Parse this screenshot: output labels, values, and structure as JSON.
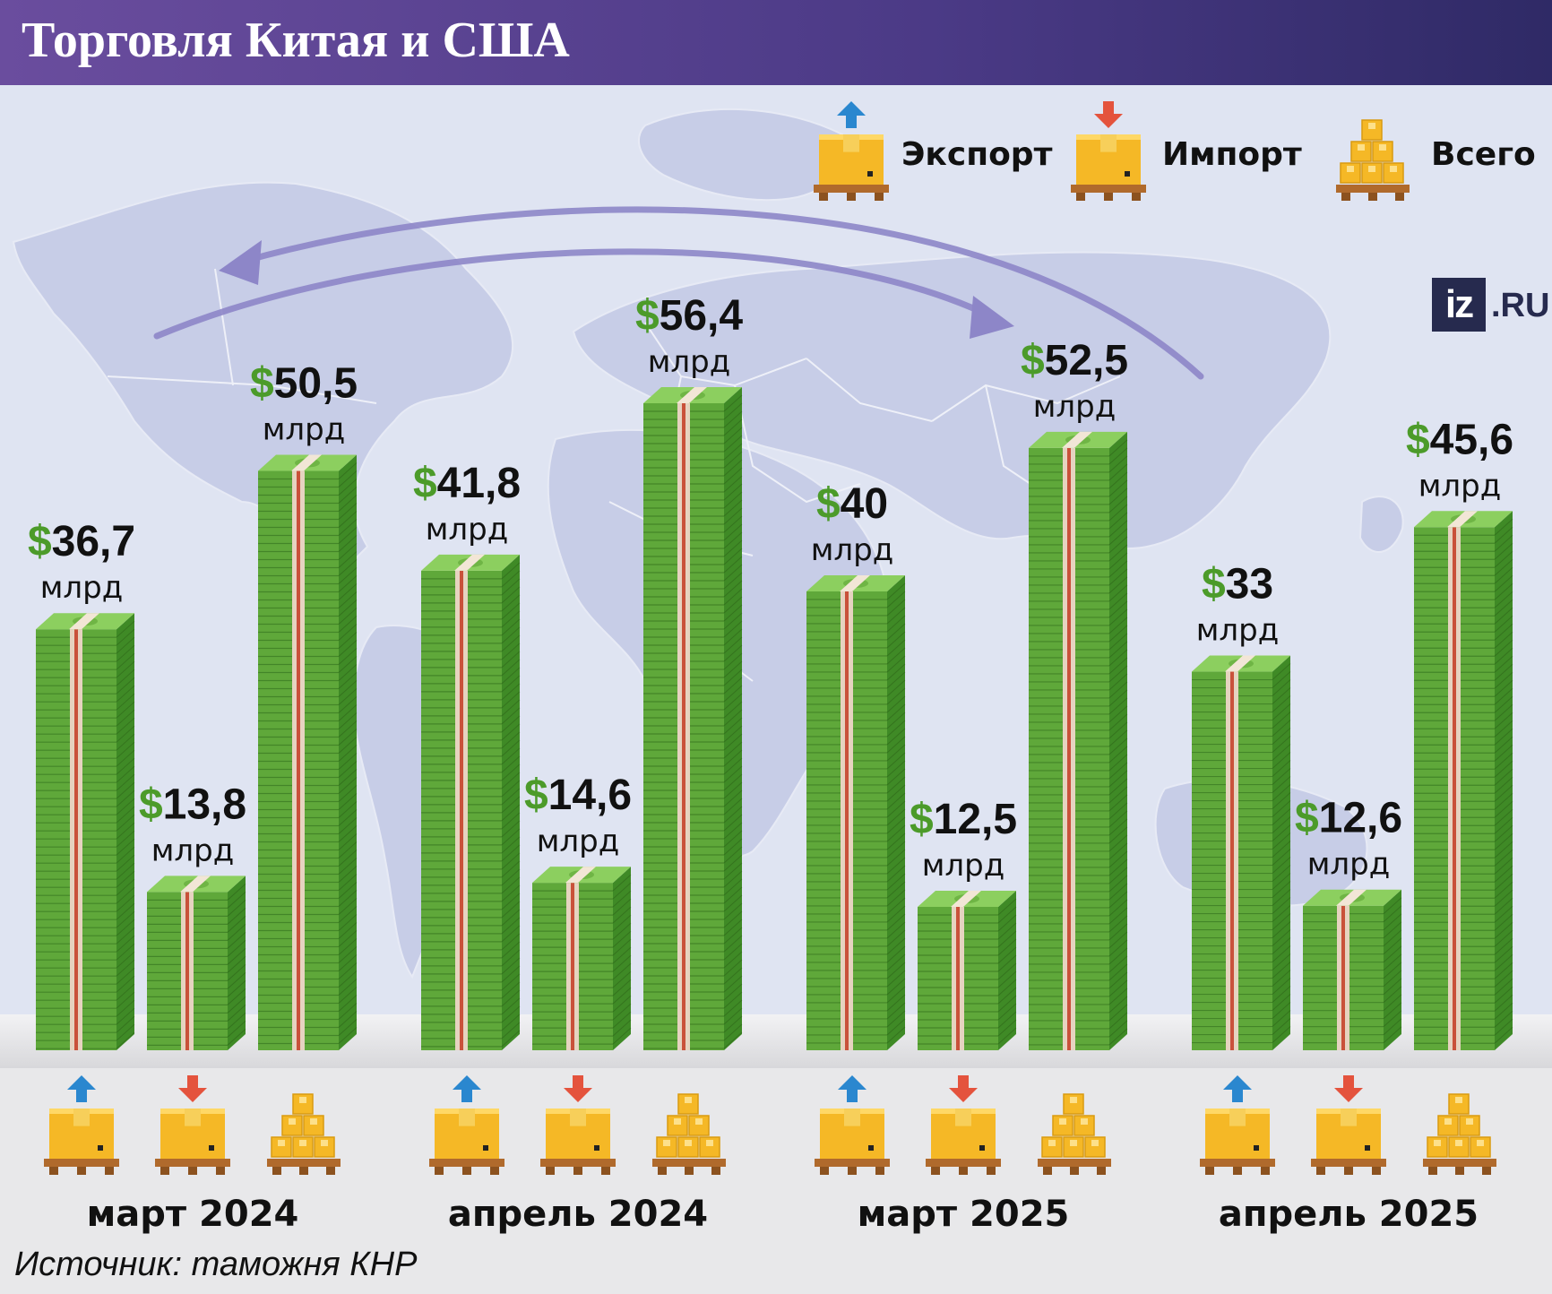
{
  "title": "Торговля Китая и США",
  "source": "Источник: таможня КНР",
  "logo": {
    "mark": "iz",
    "domain": ".RU"
  },
  "legend": [
    {
      "label": "Экспорт",
      "icon": "export-box-icon"
    },
    {
      "label": "Импорт",
      "icon": "import-box-icon"
    },
    {
      "label": "Всего",
      "icon": "total-boxes-icon"
    }
  ],
  "colors": {
    "header_start": "#6a4d9e",
    "header_end": "#2f2a66",
    "money_green": "#5fa83a",
    "money_dark": "#2d6a1a",
    "dollar_green": "#4c9b2a",
    "export_arrow": "#2a87cf",
    "import_arrow": "#e4533d",
    "box_yellow": "#f5b826",
    "map": "#c3cae6",
    "flow_arrow": "#8d86c8"
  },
  "chart_data": {
    "type": "bar",
    "categories": [
      "март 2024",
      "апрель 2024",
      "март 2025",
      "апрель 2025"
    ],
    "series": [
      {
        "name": "Экспорт",
        "values": [
          36.7,
          41.8,
          40,
          33
        ],
        "labels": [
          "36,7",
          "41,8",
          "40",
          "33"
        ]
      },
      {
        "name": "Импорт",
        "values": [
          13.8,
          14.6,
          12.5,
          12.6
        ],
        "labels": [
          "13,8",
          "14,6",
          "12,5",
          "12,6"
        ]
      },
      {
        "name": "Всего",
        "values": [
          50.5,
          56.4,
          52.5,
          45.6
        ],
        "labels": [
          "50,5",
          "56,4",
          "52,5",
          "45,6"
        ]
      }
    ],
    "currency": "$",
    "unit": "млрд",
    "ylim": [
      0,
      56.4
    ]
  }
}
